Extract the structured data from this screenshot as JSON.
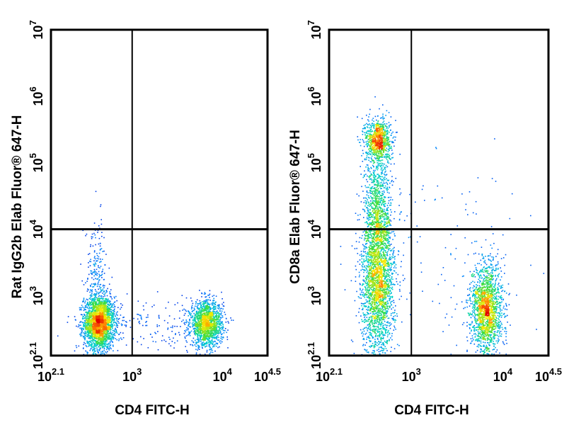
{
  "chart_data": [
    {
      "type": "scatter",
      "subtype": "flow-cytometry-density-dotplot",
      "xlabel": "CD4 FITC-H",
      "ylabel": "Rat IgG2b Elab Fluor® 647-H",
      "x_scale": "log10",
      "y_scale": "log10",
      "xlim": [
        2.1,
        4.5
      ],
      "ylim": [
        2.1,
        7
      ],
      "x_ticks": [
        {
          "value": 2.1,
          "base": "10",
          "exp": "2.1"
        },
        {
          "value": 3,
          "base": "10",
          "exp": "3"
        },
        {
          "value": 4,
          "base": "10",
          "exp": "4"
        },
        {
          "value": 4.5,
          "base": "10",
          "exp": "4.5"
        }
      ],
      "y_ticks": [
        {
          "value": 2.1,
          "base": "10",
          "exp": "2.1"
        },
        {
          "value": 3,
          "base": "10",
          "exp": "3"
        },
        {
          "value": 4,
          "base": "10",
          "exp": "4"
        },
        {
          "value": 5,
          "base": "10",
          "exp": "5"
        },
        {
          "value": 6,
          "base": "10",
          "exp": "6"
        },
        {
          "value": 7,
          "base": "10",
          "exp": "7"
        }
      ],
      "quadrant_gates": {
        "x": 3,
        "y": 4
      },
      "populations": [
        {
          "name": "CD4-negative, unstained",
          "cx": 2.63,
          "cy": 2.6,
          "sx": 0.085,
          "sy": 0.2,
          "count": 2600
        },
        {
          "name": "CD4-positive, unstained",
          "cx": 3.82,
          "cy": 2.58,
          "sx": 0.09,
          "sy": 0.17,
          "count": 1600
        },
        {
          "name": "CD4-negative tail",
          "cx": 2.6,
          "cy": 3.35,
          "sx": 0.06,
          "sy": 0.4,
          "count": 220
        },
        {
          "name": "scattered events",
          "cx": 3.2,
          "cy": 2.55,
          "sx": 0.35,
          "sy": 0.2,
          "count": 160
        }
      ]
    },
    {
      "type": "scatter",
      "subtype": "flow-cytometry-density-dotplot",
      "xlabel": "CD4 FITC-H",
      "ylabel": "CD8a Elab Fluor® 647-H",
      "x_scale": "log10",
      "y_scale": "log10",
      "xlim": [
        2.1,
        4.5
      ],
      "ylim": [
        2.1,
        7
      ],
      "x_ticks": [
        {
          "value": 2.1,
          "base": "10",
          "exp": "2.1"
        },
        {
          "value": 3,
          "base": "10",
          "exp": "3"
        },
        {
          "value": 4,
          "base": "10",
          "exp": "4"
        },
        {
          "value": 4.5,
          "base": "10",
          "exp": "4.5"
        }
      ],
      "y_ticks": [
        {
          "value": 2.1,
          "base": "10",
          "exp": "2.1"
        },
        {
          "value": 3,
          "base": "10",
          "exp": "3"
        },
        {
          "value": 4,
          "base": "10",
          "exp": "4"
        },
        {
          "value": 5,
          "base": "10",
          "exp": "5"
        },
        {
          "value": 6,
          "base": "10",
          "exp": "6"
        },
        {
          "value": 7,
          "base": "10",
          "exp": "7"
        }
      ],
      "quadrant_gates": {
        "x": 3,
        "y": 4
      },
      "populations": [
        {
          "name": "CD8a-positive, CD4-negative",
          "cx": 2.63,
          "cy": 5.35,
          "sx": 0.07,
          "sy": 0.16,
          "count": 900
        },
        {
          "name": "CD4-negative stream",
          "cx": 2.63,
          "cy": 4.3,
          "sx": 0.075,
          "sy": 0.45,
          "count": 900
        },
        {
          "name": "CD4-negative, CD8a-negative",
          "cx": 2.63,
          "cy": 3.2,
          "sx": 0.09,
          "sy": 0.55,
          "count": 2400
        },
        {
          "name": "CD4-positive, CD8a-negative",
          "cx": 3.82,
          "cy": 2.8,
          "sx": 0.085,
          "sy": 0.35,
          "count": 1800
        },
        {
          "name": "scattered events",
          "cx": 3.3,
          "cy": 3.6,
          "sx": 0.45,
          "sy": 0.8,
          "count": 110
        }
      ]
    }
  ]
}
